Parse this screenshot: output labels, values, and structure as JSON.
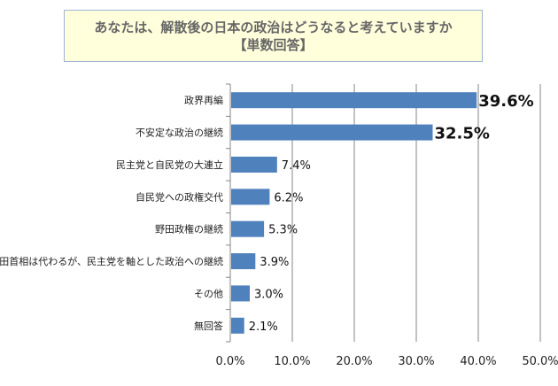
{
  "chart_data": {
    "type": "bar",
    "orientation": "horizontal",
    "title": "あなたは、解散後の日本の政治はどうなると考えていますか",
    "subtitle": "【単数回答】",
    "categories": [
      "政界再編",
      "不安定な政治の継続",
      "民主党と自民党の大連立",
      "自民党への政権交代",
      "野田政権の継続",
      "野田首相は代わるが、民主党を軸とした政治への継続",
      "その他",
      "無回答"
    ],
    "values": [
      39.6,
      32.5,
      7.4,
      6.2,
      5.3,
      3.9,
      3.0,
      2.1
    ],
    "data_labels": [
      "39.6%",
      "32.5%",
      "7.4%",
      "6.2%",
      "5.3%",
      "3.9%",
      "3.0%",
      "2.1%"
    ],
    "xlim": [
      0,
      50
    ],
    "xticks": [
      "0.0%",
      "10.0%",
      "20.0%",
      "30.0%",
      "40.0%",
      "50.0%"
    ],
    "xlabel": "",
    "ylabel": "",
    "grid": "vertical",
    "bar_color": "#4f81bd",
    "title_box_color": "#ffffdc"
  }
}
